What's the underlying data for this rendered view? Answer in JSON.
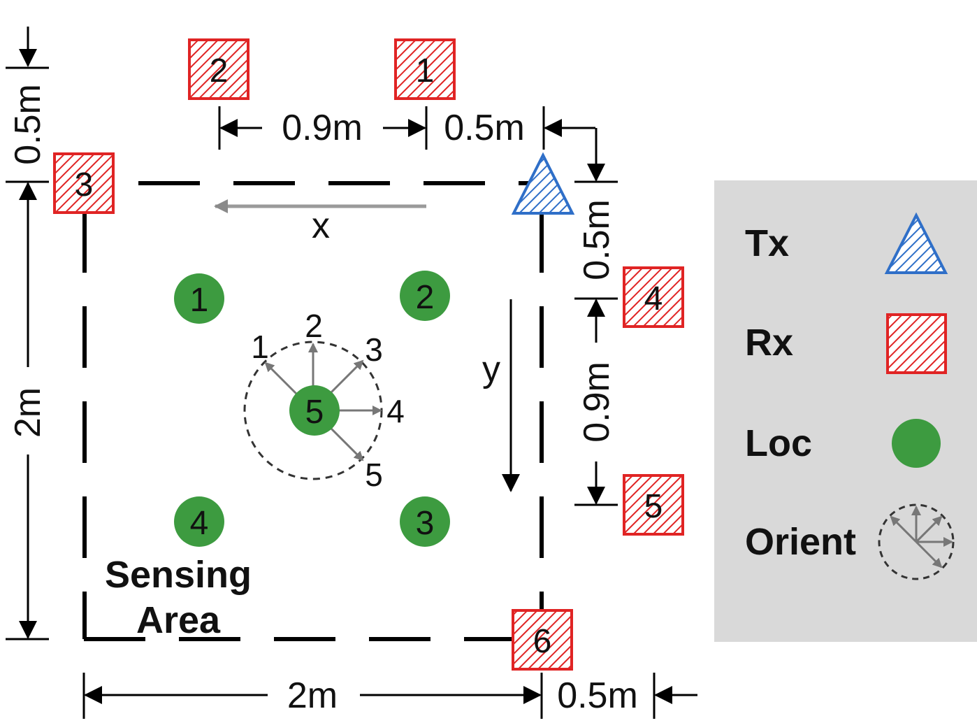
{
  "diagram": {
    "receivers": [
      "1",
      "2",
      "3",
      "4",
      "5",
      "6"
    ],
    "locations": [
      "1",
      "2",
      "3",
      "4",
      "5"
    ],
    "orientations": [
      "1",
      "2",
      "3",
      "4",
      "5"
    ],
    "axes": {
      "x": "x",
      "y": "y"
    },
    "area_label_line1": "Sensing",
    "area_label_line2": "Area",
    "dimensions": {
      "top_left_vertical": "0.5m",
      "rx2_to_rx1": "0.9m",
      "rx1_to_tx": "0.5m",
      "tx_to_rx4": "0.5m",
      "rx4_to_rx5": "0.9m",
      "left_height": "2m",
      "bottom_width": "2m",
      "bottom_right": "0.5m"
    },
    "colors": {
      "tx": "#2f6fc8",
      "rx": "#e02424",
      "loc": "#3d9b40",
      "legend_bg": "#d9d9d9",
      "arrow_gray": "#8a8a8a"
    }
  },
  "legend": {
    "tx": "Tx",
    "rx": "Rx",
    "loc": "Loc",
    "orient": "Orient"
  }
}
